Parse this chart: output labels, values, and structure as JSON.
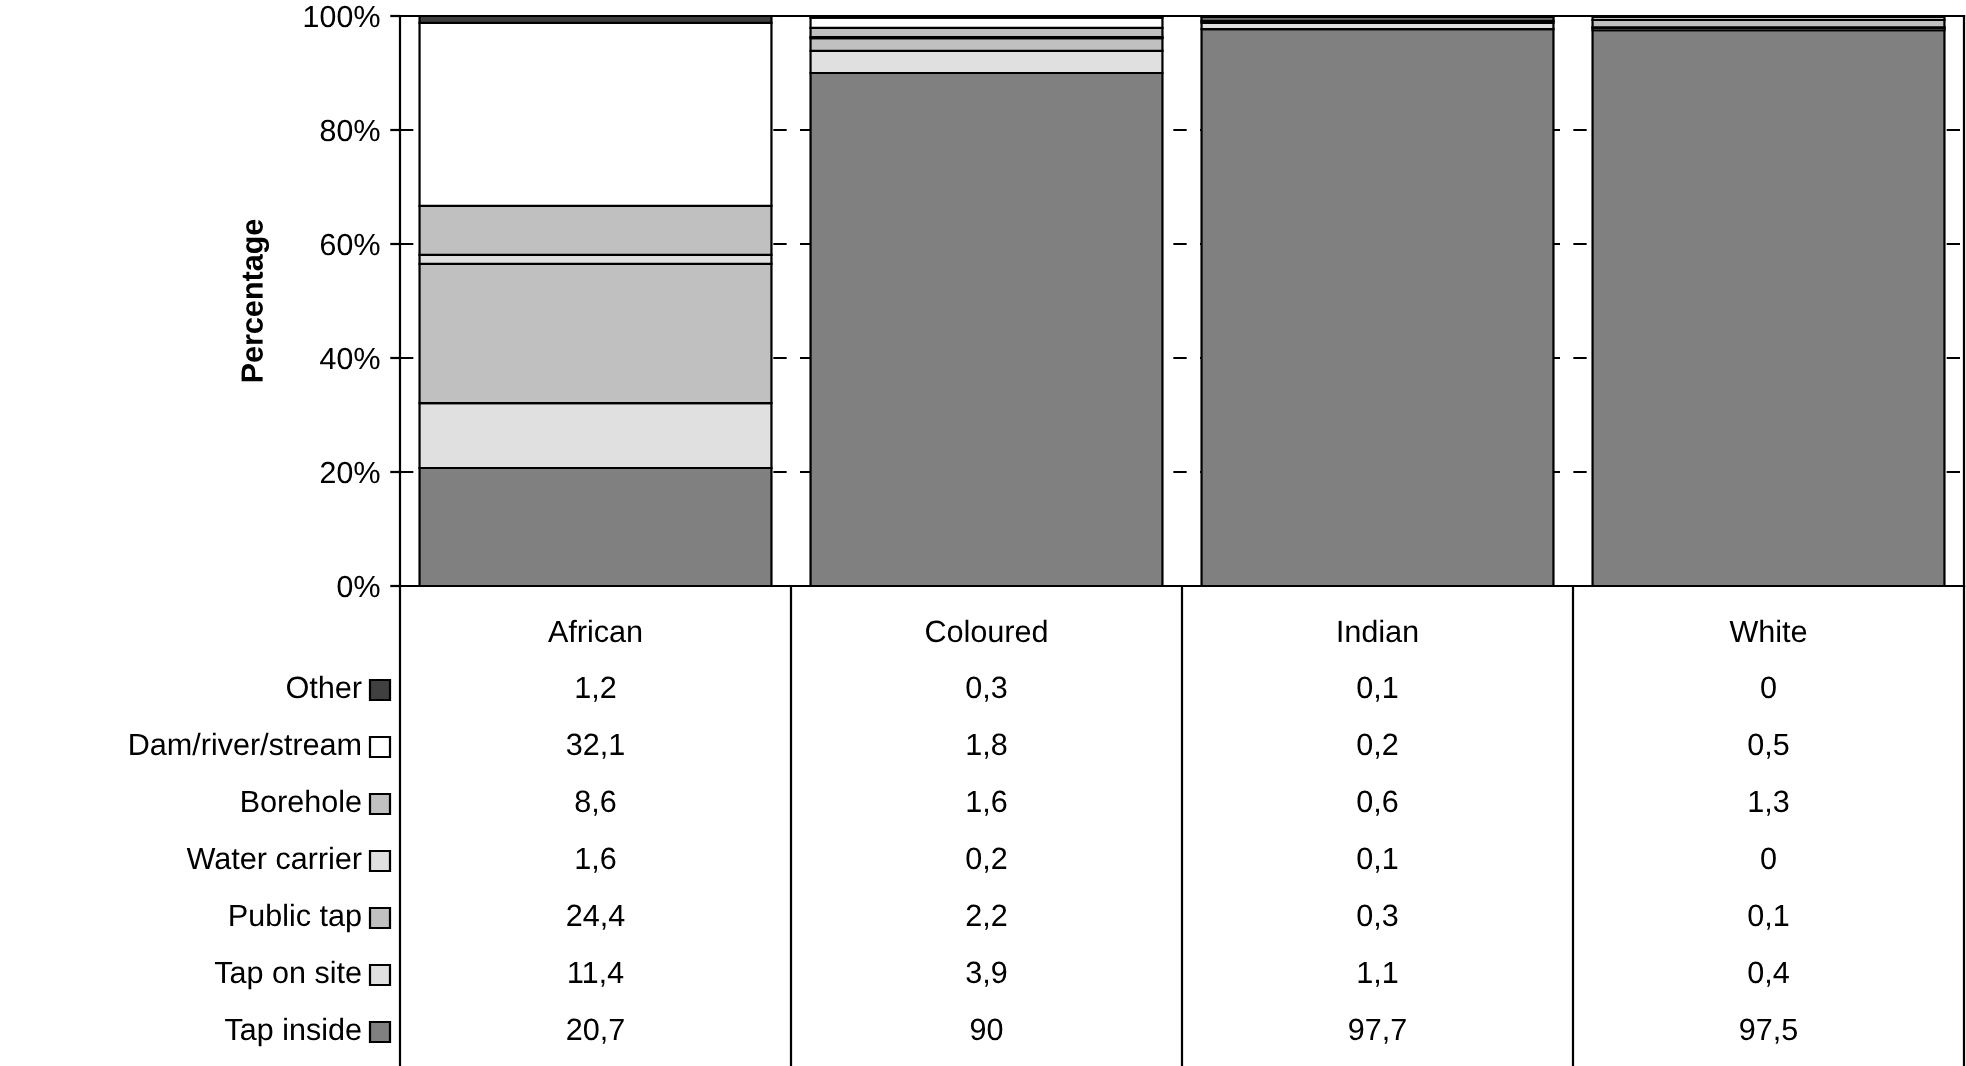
{
  "chart_data": {
    "type": "bar",
    "stacked": true,
    "ylabel": "Percentage",
    "categories": [
      "African",
      "Coloured",
      "Indian",
      "White"
    ],
    "ylim": [
      0,
      100
    ],
    "yticks": [
      {
        "value": 0,
        "label": "0%"
      },
      {
        "value": 20,
        "label": "20%"
      },
      {
        "value": 40,
        "label": "40%"
      },
      {
        "value": 60,
        "label": "60%"
      },
      {
        "value": 80,
        "label": "80%"
      },
      {
        "value": 100,
        "label": "100%"
      }
    ],
    "grid": "y",
    "legend": "bottom",
    "series": [
      {
        "name": "Tap inside",
        "color": "#808080",
        "values": [
          20.7,
          90,
          97.7,
          97.5
        ],
        "value_labels": [
          "20,7",
          "90",
          "97,7",
          "97,5"
        ]
      },
      {
        "name": "Tap on site",
        "color": "#e0e0e0",
        "values": [
          11.4,
          3.9,
          1.1,
          0.4
        ],
        "value_labels": [
          "11,4",
          "3,9",
          "1,1",
          "0,4"
        ]
      },
      {
        "name": "Public tap",
        "color": "#c0c0c0",
        "values": [
          24.4,
          2.2,
          0.3,
          0.1
        ],
        "value_labels": [
          "24,4",
          "2,2",
          "0,3",
          "0,1"
        ]
      },
      {
        "name": "Water carrier",
        "color": "#e0e0e0",
        "values": [
          1.6,
          0.2,
          0.1,
          0
        ],
        "value_labels": [
          "1,6",
          "0,2",
          "0,1",
          "0"
        ]
      },
      {
        "name": "Borehole",
        "color": "#c0c0c0",
        "values": [
          8.6,
          1.6,
          0.6,
          1.3
        ],
        "value_labels": [
          "8,6",
          "1,6",
          "0,6",
          "1,3"
        ]
      },
      {
        "name": "Dam/river/stream",
        "color": "#ffffff",
        "values": [
          32.1,
          1.8,
          0.2,
          0.5
        ],
        "value_labels": [
          "32,1",
          "1,8",
          "0,2",
          "0,5"
        ]
      },
      {
        "name": "Other",
        "color": "#404040",
        "values": [
          1.2,
          0.3,
          0.1,
          0
        ],
        "value_labels": [
          "1,2",
          "0,3",
          "0,1",
          "0"
        ]
      }
    ]
  }
}
